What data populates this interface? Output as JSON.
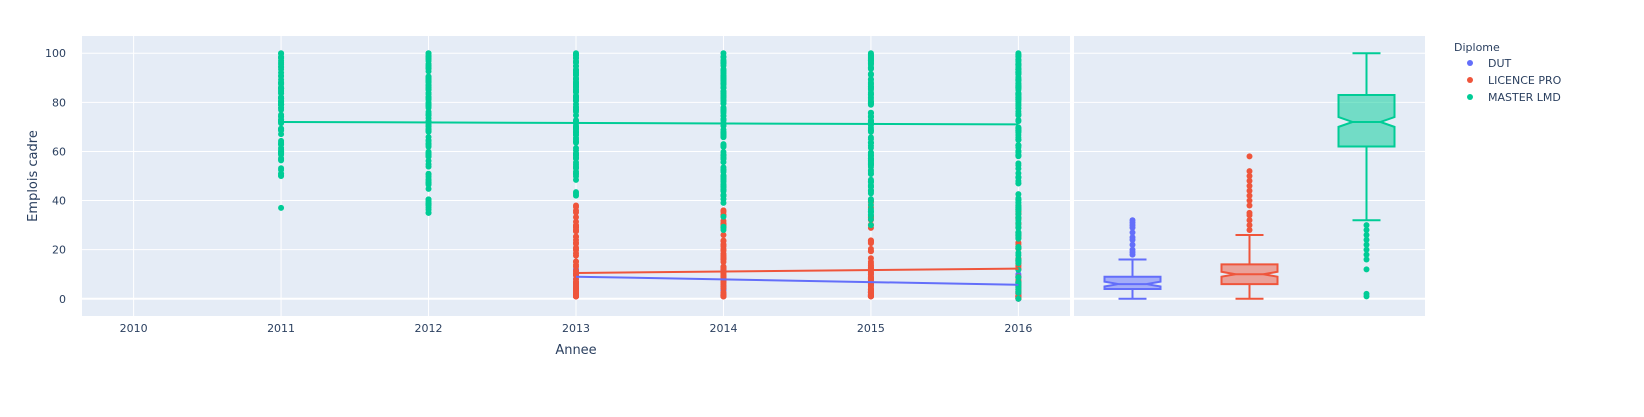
{
  "chart_data": {
    "type": "scatter",
    "xlabel": "Annee",
    "ylabel": "Emplois cadre",
    "x_ticks": [
      2010,
      2011,
      2012,
      2013,
      2014,
      2015,
      2016
    ],
    "y_ticks": [
      0,
      20,
      40,
      60,
      80,
      100
    ],
    "xlim": [
      2009.65,
      2016.35
    ],
    "ylim": [
      -7,
      107
    ],
    "legend": {
      "title": "Diplome",
      "placement": "top-right"
    },
    "series": [
      {
        "name": "DUT",
        "color": "#636efa",
        "trend": {
          "x": [
            2013,
            2016
          ],
          "y": [
            9,
            5.7
          ]
        },
        "points": [
          {
            "x": 2013,
            "min": 1,
            "max": 12
          },
          {
            "x": 2014,
            "min": 1,
            "max": 13
          },
          {
            "x": 2015,
            "min": 1,
            "max": 12
          },
          {
            "x": 2016,
            "min": 0,
            "max": 10
          }
        ],
        "box": {
          "min": 0,
          "q1": 4,
          "median": 6,
          "q3": 9,
          "max": 16,
          "notch_low": 5,
          "notch_high": 7,
          "outliers": [
            18,
            19,
            20,
            22,
            24,
            25,
            27,
            29,
            30,
            31,
            32
          ]
        }
      },
      {
        "name": "LICENCE PRO",
        "color": "#ef553b",
        "trend": {
          "x": [
            2013,
            2016
          ],
          "y": [
            10.5,
            12.3
          ]
        },
        "points": [
          {
            "x": 2013,
            "min": 1,
            "max": 38
          },
          {
            "x": 2014,
            "min": 1,
            "max": 36
          },
          {
            "x": 2015,
            "min": 1,
            "max": 40
          },
          {
            "x": 2016,
            "min": 0,
            "max": 38
          }
        ],
        "box": {
          "min": 0,
          "q1": 6,
          "median": 10,
          "q3": 14,
          "max": 26,
          "notch_low": 9,
          "notch_high": 11,
          "outliers": [
            28,
            30,
            32,
            34,
            35,
            38,
            40,
            42,
            44,
            46,
            48,
            50,
            52,
            58
          ]
        }
      },
      {
        "name": "MASTER LMD",
        "color": "#00cc96",
        "trend": {
          "x": [
            2011,
            2016
          ],
          "y": [
            72,
            71
          ]
        },
        "points": [
          {
            "x": 2011,
            "min": 50,
            "max": 100,
            "extra": [
              37
            ]
          },
          {
            "x": 2012,
            "min": 35,
            "max": 100
          },
          {
            "x": 2013,
            "min": 42,
            "max": 100
          },
          {
            "x": 2014,
            "min": 28,
            "max": 100
          },
          {
            "x": 2015,
            "min": 30,
            "max": 100
          },
          {
            "x": 2016,
            "min": 0,
            "max": 100
          }
        ],
        "box": {
          "min": 32,
          "q1": 62,
          "median": 72,
          "q3": 83,
          "max": 100,
          "notch_low": 70,
          "notch_high": 74,
          "outliers": [
            1,
            2,
            12,
            16,
            18,
            20,
            22,
            24,
            26,
            28,
            30
          ]
        }
      }
    ]
  }
}
